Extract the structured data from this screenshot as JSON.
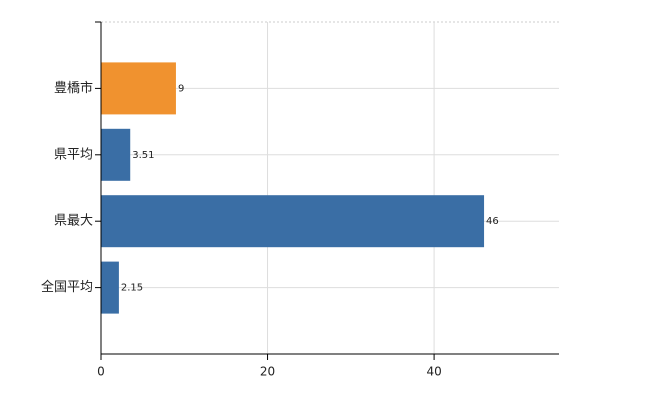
{
  "chart_data": {
    "type": "bar",
    "orientation": "horizontal",
    "categories": [
      "豊橋市",
      "県平均",
      "県最大",
      "全国平均"
    ],
    "values": [
      9,
      3.51,
      46,
      2.15
    ],
    "colors": [
      "#f0922f",
      "#3a6ea5",
      "#3a6ea5",
      "#3a6ea5"
    ],
    "xlim": [
      0,
      55
    ],
    "xticks": [
      0,
      20,
      40
    ],
    "grid": true
  }
}
